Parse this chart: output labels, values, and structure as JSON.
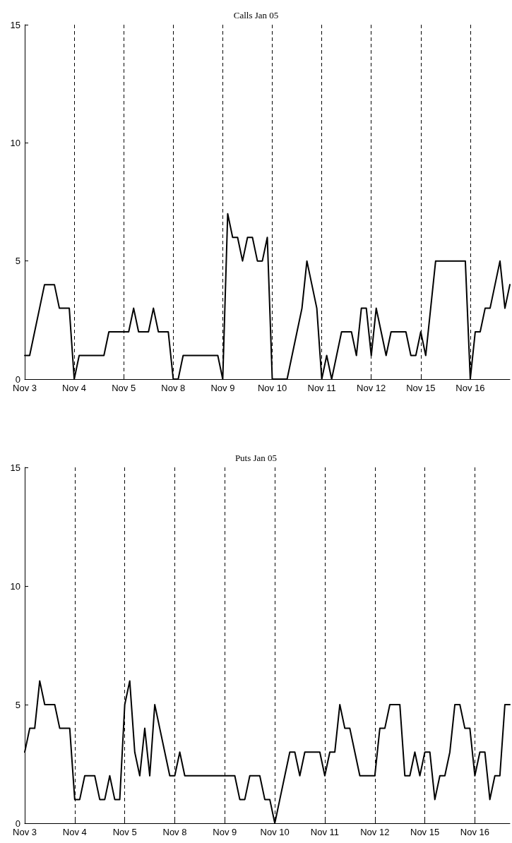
{
  "chart_data": [
    {
      "type": "line",
      "title": "Calls Jan 05",
      "grid": "x",
      "line_style": "solid",
      "marker": "none",
      "ylim": [
        0,
        15
      ],
      "yticks": [
        0,
        5,
        10,
        15
      ],
      "categories": [
        "Nov 3",
        null,
        null,
        null,
        null,
        null,
        null,
        null,
        null,
        null,
        "Nov 4",
        null,
        null,
        null,
        null,
        null,
        null,
        null,
        null,
        null,
        "Nov 5",
        null,
        null,
        null,
        null,
        null,
        null,
        null,
        null,
        null,
        "Nov 8",
        null,
        null,
        null,
        null,
        null,
        null,
        null,
        null,
        null,
        "Nov 9",
        null,
        null,
        null,
        null,
        null,
        null,
        null,
        null,
        null,
        "Nov 10",
        null,
        null,
        null,
        null,
        null,
        null,
        null,
        null,
        null,
        "Nov 11",
        null,
        null,
        null,
        null,
        null,
        null,
        null,
        null,
        null,
        "Nov 12",
        null,
        null,
        null,
        null,
        null,
        null,
        null,
        null,
        null,
        "Nov 15",
        null,
        null,
        null,
        null,
        null,
        null,
        null,
        null,
        null,
        "Nov 16",
        null,
        null,
        null,
        null,
        null,
        null,
        null,
        null
      ],
      "series": [
        {
          "color": "#000000",
          "values": [
            1,
            1,
            2,
            3,
            4,
            4,
            4,
            3,
            3,
            3,
            0,
            1,
            1,
            1,
            1,
            1,
            1,
            2,
            2,
            2,
            2,
            2,
            3,
            2,
            2,
            2,
            3,
            2,
            2,
            2,
            0,
            0,
            1,
            1,
            1,
            1,
            1,
            1,
            1,
            1,
            0,
            7,
            6,
            6,
            5,
            6,
            6,
            5,
            5,
            6,
            0,
            0,
            0,
            0,
            1,
            2,
            3,
            5,
            4,
            3,
            0,
            1,
            0,
            1,
            2,
            2,
            2,
            1,
            3,
            3,
            1,
            3,
            2,
            1,
            2,
            2,
            2,
            2,
            1,
            1,
            2,
            1,
            3,
            5,
            5,
            5,
            5,
            5,
            5,
            5,
            0,
            2,
            2,
            3,
            3,
            4,
            5,
            3,
            4
          ]
        }
      ]
    },
    {
      "type": "line",
      "title": "Puts Jan 05",
      "grid": "x",
      "line_style": "solid",
      "marker": "none",
      "ylim": [
        0,
        15
      ],
      "yticks": [
        0,
        5,
        10,
        15
      ],
      "categories": [
        "Nov 3",
        null,
        null,
        null,
        null,
        null,
        null,
        null,
        null,
        null,
        "Nov 4",
        null,
        null,
        null,
        null,
        null,
        null,
        null,
        null,
        null,
        "Nov 5",
        null,
        null,
        null,
        null,
        null,
        null,
        null,
        null,
        null,
        "Nov 8",
        null,
        null,
        null,
        null,
        null,
        null,
        null,
        null,
        null,
        "Nov 9",
        null,
        null,
        null,
        null,
        null,
        null,
        null,
        null,
        null,
        "Nov 10",
        null,
        null,
        null,
        null,
        null,
        null,
        null,
        null,
        null,
        "Nov 11",
        null,
        null,
        null,
        null,
        null,
        null,
        null,
        null,
        null,
        "Nov 12",
        null,
        null,
        null,
        null,
        null,
        null,
        null,
        null,
        null,
        "Nov 15",
        null,
        null,
        null,
        null,
        null,
        null,
        null,
        null,
        null,
        "Nov 16",
        null,
        null,
        null,
        null,
        null,
        null,
        null
      ],
      "series": [
        {
          "color": "#000000",
          "values": [
            3,
            4,
            4,
            6,
            5,
            5,
            5,
            4,
            4,
            4,
            1,
            1,
            2,
            2,
            2,
            1,
            1,
            2,
            1,
            1,
            5,
            6,
            3,
            2,
            4,
            2,
            5,
            4,
            3,
            2,
            2,
            3,
            2,
            2,
            2,
            2,
            2,
            2,
            2,
            2,
            2,
            2,
            2,
            1,
            1,
            2,
            2,
            2,
            1,
            1,
            0,
            1,
            2,
            3,
            3,
            2,
            3,
            3,
            3,
            3,
            2,
            3,
            3,
            5,
            4,
            4,
            3,
            2,
            2,
            2,
            2,
            4,
            4,
            5,
            5,
            5,
            2,
            2,
            3,
            2,
            3,
            3,
            1,
            2,
            2,
            3,
            5,
            5,
            4,
            4,
            2,
            3,
            3,
            1,
            2,
            2,
            5,
            5
          ]
        }
      ]
    }
  ]
}
